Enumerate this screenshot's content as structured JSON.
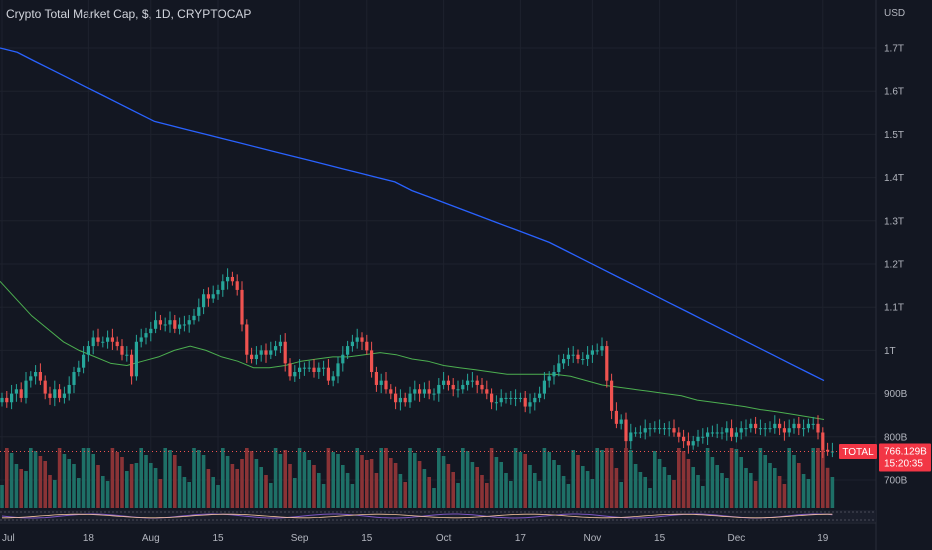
{
  "header": {
    "title": "Crypto Total Market Cap, $, 1D, CRYPTOCAP"
  },
  "price_axis": {
    "currency": "USD"
  },
  "last_price": {
    "symbol": "TOTAL",
    "value": "766.129B",
    "countdown": "15:20:35"
  },
  "colors": {
    "background": "#131722",
    "grid": "#1e222d",
    "up": "#26a69a",
    "down": "#ef5350",
    "ma_long": "#2962ff",
    "ma_short": "#4caf50",
    "volume_up": "#1e7067",
    "volume_down": "#8a3336",
    "label_bg": "#f23645"
  },
  "chart_data": {
    "type": "candlestick",
    "title": "Crypto Total Market Cap, $, 1D, CRYPTOCAP",
    "y_unit": "USD",
    "y_range": [
      0.66,
      1.79
    ],
    "y_ticks": [
      {
        "value": 1.7,
        "label": "1.7T"
      },
      {
        "value": 1.6,
        "label": "1.6T"
      },
      {
        "value": 1.5,
        "label": "1.5T"
      },
      {
        "value": 1.4,
        "label": "1.4T"
      },
      {
        "value": 1.3,
        "label": "1.3T"
      },
      {
        "value": 1.2,
        "label": "1.2T"
      },
      {
        "value": 1.1,
        "label": "1.1T"
      },
      {
        "value": 1.0,
        "label": "1T"
      },
      {
        "value": 0.9,
        "label": "900B"
      },
      {
        "value": 0.8,
        "label": "800B"
      },
      {
        "value": 0.7,
        "label": "700B"
      }
    ],
    "x_ticks": [
      {
        "index": 0,
        "label": "Jul"
      },
      {
        "index": 18,
        "label": "18"
      },
      {
        "index": 31,
        "label": "Aug"
      },
      {
        "index": 45,
        "label": "15"
      },
      {
        "index": 62,
        "label": "Sep"
      },
      {
        "index": 76,
        "label": "15"
      },
      {
        "index": 92,
        "label": "Oct"
      },
      {
        "index": 108,
        "label": "17"
      },
      {
        "index": 123,
        "label": "Nov"
      },
      {
        "index": 137,
        "label": "15"
      },
      {
        "index": 153,
        "label": "Dec"
      },
      {
        "index": 171,
        "label": "19"
      }
    ],
    "last_value": 0.766,
    "candles_close": [
      0.89,
      0.88,
      0.9,
      0.91,
      0.89,
      0.93,
      0.94,
      0.95,
      0.93,
      0.9,
      0.89,
      0.91,
      0.89,
      0.9,
      0.92,
      0.95,
      0.96,
      0.99,
      1.01,
      1.03,
      1.02,
      1.02,
      1.03,
      1.02,
      1.01,
      0.99,
      0.99,
      0.94,
      1.02,
      1.03,
      1.04,
      1.05,
      1.07,
      1.06,
      1.06,
      1.07,
      1.05,
      1.06,
      1.06,
      1.07,
      1.08,
      1.1,
      1.13,
      1.12,
      1.13,
      1.14,
      1.16,
      1.17,
      1.16,
      1.14,
      1.06,
      0.99,
      0.98,
      0.99,
      1.0,
      0.99,
      1.0,
      1.01,
      1.02,
      0.97,
      0.94,
      0.95,
      0.96,
      0.96,
      0.96,
      0.95,
      0.96,
      0.96,
      0.93,
      0.94,
      0.97,
      0.99,
      1.01,
      1.02,
      1.03,
      1.02,
      1.0,
      0.95,
      0.92,
      0.93,
      0.91,
      0.9,
      0.88,
      0.89,
      0.88,
      0.9,
      0.91,
      0.9,
      0.91,
      0.9,
      0.9,
      0.92,
      0.93,
      0.92,
      0.91,
      0.91,
      0.92,
      0.93,
      0.93,
      0.92,
      0.91,
      0.9,
      0.88,
      0.88,
      0.89,
      0.89,
      0.89,
      0.89,
      0.89,
      0.87,
      0.88,
      0.89,
      0.9,
      0.93,
      0.94,
      0.95,
      0.97,
      0.98,
      0.99,
      0.99,
      0.98,
      0.98,
      0.99,
      1.0,
      1.0,
      1.01,
      0.93,
      0.86,
      0.83,
      0.84,
      0.79,
      0.81,
      0.81,
      0.81,
      0.82,
      0.82,
      0.82,
      0.82,
      0.82,
      0.82,
      0.81,
      0.8,
      0.79,
      0.78,
      0.79,
      0.8,
      0.8,
      0.81,
      0.81,
      0.81,
      0.81,
      0.82,
      0.8,
      0.81,
      0.82,
      0.82,
      0.83,
      0.82,
      0.82,
      0.82,
      0.82,
      0.83,
      0.82,
      0.81,
      0.82,
      0.83,
      0.82,
      0.82,
      0.83,
      0.83,
      0.81,
      0.77,
      0.766,
      0.766
    ],
    "ma_long": [
      1.7,
      1.69,
      1.67,
      1.65,
      1.63,
      1.61,
      1.59,
      1.57,
      1.55,
      1.53,
      1.52,
      1.51,
      1.5,
      1.49,
      1.48,
      1.47,
      1.46,
      1.45,
      1.44,
      1.43,
      1.42,
      1.41,
      1.4,
      1.39,
      1.37,
      1.355,
      1.34,
      1.325,
      1.31,
      1.295,
      1.28,
      1.265,
      1.25,
      1.23,
      1.21,
      1.19,
      1.17,
      1.15,
      1.13,
      1.11,
      1.09,
      1.07,
      1.05,
      1.03,
      1.01,
      0.99,
      0.97,
      0.95,
      0.93
    ],
    "ma_short": [
      1.16,
      1.12,
      1.08,
      1.05,
      1.02,
      1.0,
      0.985,
      0.97,
      0.965,
      0.975,
      0.985,
      1.0,
      1.01,
      1.0,
      0.985,
      0.975,
      0.96,
      0.96,
      0.965,
      0.975,
      0.98,
      0.985,
      0.985,
      0.99,
      0.995,
      0.99,
      0.98,
      0.975,
      0.965,
      0.96,
      0.955,
      0.95,
      0.945,
      0.945,
      0.945,
      0.945,
      0.94,
      0.93,
      0.92,
      0.915,
      0.91,
      0.905,
      0.9,
      0.895,
      0.885,
      0.88,
      0.875,
      0.87,
      0.863,
      0.858,
      0.852,
      0.846,
      0.84
    ]
  }
}
